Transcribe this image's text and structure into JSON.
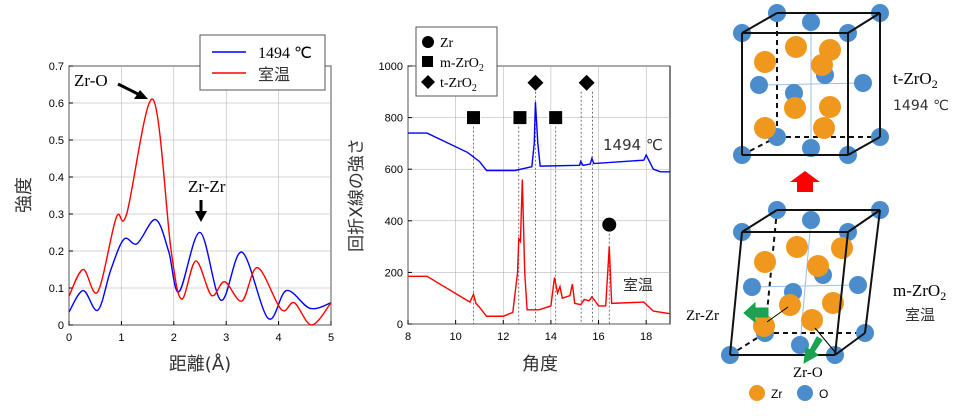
{
  "chart_data": [
    {
      "type": "line",
      "title": "",
      "xlabel": "距離(Å)",
      "ylabel": "強度",
      "xlim": [
        0,
        5
      ],
      "ylim": [
        0,
        0.7
      ],
      "xticks": [
        "0",
        "1",
        "2",
        "3",
        "4",
        "5"
      ],
      "yticks": [
        "0",
        "0.1",
        "0.2",
        "0.3",
        "0.4",
        "0.5",
        "0.6",
        "0.7"
      ],
      "grid": true,
      "legend_placement": "top-right",
      "series": [
        {
          "name": "1494 ℃",
          "color": "#0000ff",
          "x": [
            0,
            0.27,
            0.55,
            0.8,
            1.05,
            1.3,
            1.65,
            1.9,
            2.1,
            2.5,
            2.9,
            3.3,
            3.8,
            4.15,
            4.6,
            5
          ],
          "y": [
            0.035,
            0.093,
            0.04,
            0.15,
            0.232,
            0.22,
            0.285,
            0.2,
            0.09,
            0.25,
            0.067,
            0.197,
            0.018,
            0.093,
            0.045,
            0.06
          ]
        },
        {
          "name": "室温",
          "color": "#ff0000",
          "x": [
            0,
            0.27,
            0.55,
            0.9,
            1.1,
            1.6,
            1.95,
            2.15,
            2.42,
            2.72,
            2.97,
            3.3,
            3.6,
            4.05,
            4.3,
            4.63,
            5
          ],
          "y": [
            0.078,
            0.15,
            0.09,
            0.29,
            0.3,
            0.61,
            0.2,
            0.07,
            0.173,
            0.08,
            0.117,
            0.065,
            0.155,
            0.042,
            0.06,
            0.0,
            0.06
          ]
        }
      ],
      "annotations": [
        {
          "text": "Zr-O",
          "x": 1.6,
          "y": 0.61
        },
        {
          "text": "Zr-Zr",
          "x": 2.5,
          "y": 0.25
        }
      ]
    },
    {
      "type": "line",
      "title": "",
      "xlabel": "角度",
      "ylabel": "回折X線の強さ",
      "xlim": [
        8,
        19
      ],
      "ylim": [
        0,
        1000
      ],
      "xticks": [
        "8",
        "10",
        "12",
        "14",
        "16",
        "18"
      ],
      "yticks": [
        "0",
        "200",
        "400",
        "600",
        "800",
        "1000"
      ],
      "grid": true,
      "legend_placement": "top-left",
      "legend": [
        {
          "marker": "circle",
          "label": "Zr"
        },
        {
          "marker": "square",
          "label": "m-ZrO",
          "sub": "2"
        },
        {
          "marker": "diamond",
          "label": "t-ZrO",
          "sub": "2"
        }
      ],
      "series": [
        {
          "name": "1494 ℃",
          "color": "#0000ff",
          "x": [
            8,
            8.8,
            10.5,
            11,
            11.3,
            12.5,
            13.2,
            13.3,
            13.35,
            13.45,
            13.55,
            15.2,
            15.25,
            15.35,
            15.65,
            15.72,
            15.8,
            17.9,
            18.0,
            18.3,
            18.6,
            19
          ],
          "y": [
            740,
            740,
            665,
            630,
            595,
            595,
            610,
            700,
            860,
            700,
            612,
            615,
            630,
            615,
            620,
            642,
            622,
            635,
            655,
            600,
            590,
            590
          ]
        },
        {
          "name": "室温",
          "color": "#ff0000",
          "x": [
            8,
            8.8,
            10.6,
            10.75,
            10.85,
            11,
            11.3,
            12,
            12.4,
            12.6,
            12.65,
            12.72,
            12.8,
            12.9,
            13.0,
            13.5,
            14.0,
            14.15,
            14.28,
            14.38,
            14.48,
            14.8,
            14.9,
            15.0,
            15.25,
            15.4,
            15.6,
            15.72,
            15.85,
            16.0,
            16.3,
            16.45,
            16.55,
            17.9,
            18.3,
            19
          ],
          "y": [
            185,
            185,
            85,
            115,
            80,
            65,
            30,
            30,
            45,
            200,
            330,
            320,
            560,
            200,
            55,
            55,
            70,
            180,
            120,
            145,
            100,
            110,
            155,
            80,
            75,
            95,
            90,
            105,
            90,
            70,
            70,
            300,
            80,
            85,
            50,
            40
          ]
        }
      ],
      "markers": [
        {
          "type": "square",
          "x": 10.75,
          "y": 800
        },
        {
          "type": "square",
          "x": 12.7,
          "y": 800
        },
        {
          "type": "square",
          "x": 14.2,
          "y": 800
        },
        {
          "type": "diamond",
          "x": 13.35,
          "y": 935
        },
        {
          "type": "diamond",
          "x": 15.5,
          "y": 935
        },
        {
          "type": "circle",
          "x": 16.45,
          "y": 385
        }
      ],
      "reference_lines_x": [
        10.75,
        12.65,
        13.35,
        14.2,
        15.27,
        15.75,
        16.45
      ],
      "series_labels": [
        "1494 ℃",
        "室温"
      ]
    }
  ],
  "diagram": {
    "top_label": "t-ZrO",
    "top_label_sub": "2",
    "top_temp": "1494 ℃",
    "bottom_label": "m-ZrO",
    "bottom_label_sub": "2",
    "bottom_temp": "室温",
    "zrzr_label": "Zr-Zr",
    "zro_label": "Zr-O",
    "legend_zr": "Zr",
    "legend_o": "O",
    "colors": {
      "zr": "#f0981e",
      "o": "#4a8ccc",
      "arrow_up": "#ff0000",
      "green_arrow": "#1fa052"
    }
  }
}
